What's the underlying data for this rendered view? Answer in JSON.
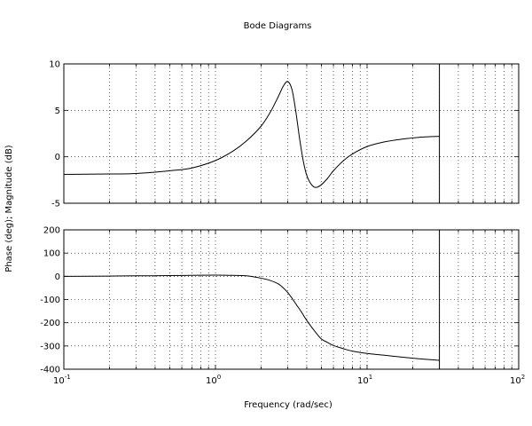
{
  "chart_data": {
    "type": "line",
    "title": "Bode Diagrams",
    "xlabel": "Frequency (rad/sec)",
    "ylabel": "Phase (deg); Magnitude (dB)",
    "x_scale": "log",
    "xlim": [
      0.1,
      100
    ],
    "x_ticks": [
      {
        "base": "10",
        "exp": "-1"
      },
      {
        "base": "10",
        "exp": "0"
      },
      {
        "base": "10",
        "exp": "1"
      },
      {
        "base": "10",
        "exp": "2"
      }
    ],
    "grid": true,
    "vertical_marker_x": 30,
    "line_color": "#000000",
    "panels": [
      {
        "name": "magnitude",
        "ylim": [
          -5,
          10
        ],
        "y_ticks": [
          "10",
          "5",
          "0",
          "-5"
        ],
        "y_tick_values": [
          10,
          5,
          0,
          -5
        ],
        "series": [
          {
            "x": [
              0.1,
              0.2,
              0.3,
              0.5,
              0.7,
              1.0,
              1.3,
              1.6,
              2.0,
              2.3,
              2.6,
              2.8,
              3.0,
              3.2,
              3.4,
              3.6,
              3.8,
              4.0,
              4.3,
              4.6,
              5.0,
              5.5,
              6.0,
              7.0,
              8.0,
              10.0,
              13.0,
              17.0,
              22.0,
              30.0
            ],
            "y": [
              -1.9,
              -1.85,
              -1.8,
              -1.5,
              -1.2,
              -0.4,
              0.6,
              1.7,
              3.3,
              4.8,
              6.5,
              7.6,
              8.1,
              7.2,
              4.7,
              1.8,
              -0.5,
              -2.0,
              -3.0,
              -3.3,
              -3.0,
              -2.3,
              -1.5,
              -0.4,
              0.3,
              1.1,
              1.6,
              1.9,
              2.1,
              2.2
            ]
          }
        ]
      },
      {
        "name": "phase",
        "ylim": [
          -400,
          200
        ],
        "y_ticks": [
          "200",
          "100",
          "0",
          "-100",
          "-200",
          "-300",
          "-400"
        ],
        "y_tick_values": [
          200,
          100,
          0,
          -100,
          -200,
          -300,
          -400
        ],
        "series": [
          {
            "x": [
              0.1,
              0.2,
              0.3,
              0.5,
              0.7,
              1.0,
              1.3,
              1.6,
              2.0,
              2.3,
              2.6,
              2.8,
              3.0,
              3.2,
              3.4,
              3.7,
              4.0,
              4.5,
              5.0,
              5.5,
              6.0,
              7.0,
              8.0,
              10.0,
              13.0,
              17.0,
              22.0,
              30.0
            ],
            "y": [
              0,
              1,
              2,
              3,
              4,
              5,
              4,
              2,
              -8,
              -18,
              -33,
              -50,
              -70,
              -95,
              -120,
              -155,
              -190,
              -235,
              -270,
              -285,
              -298,
              -312,
              -322,
              -332,
              -340,
              -348,
              -355,
              -362
            ]
          }
        ]
      }
    ]
  }
}
